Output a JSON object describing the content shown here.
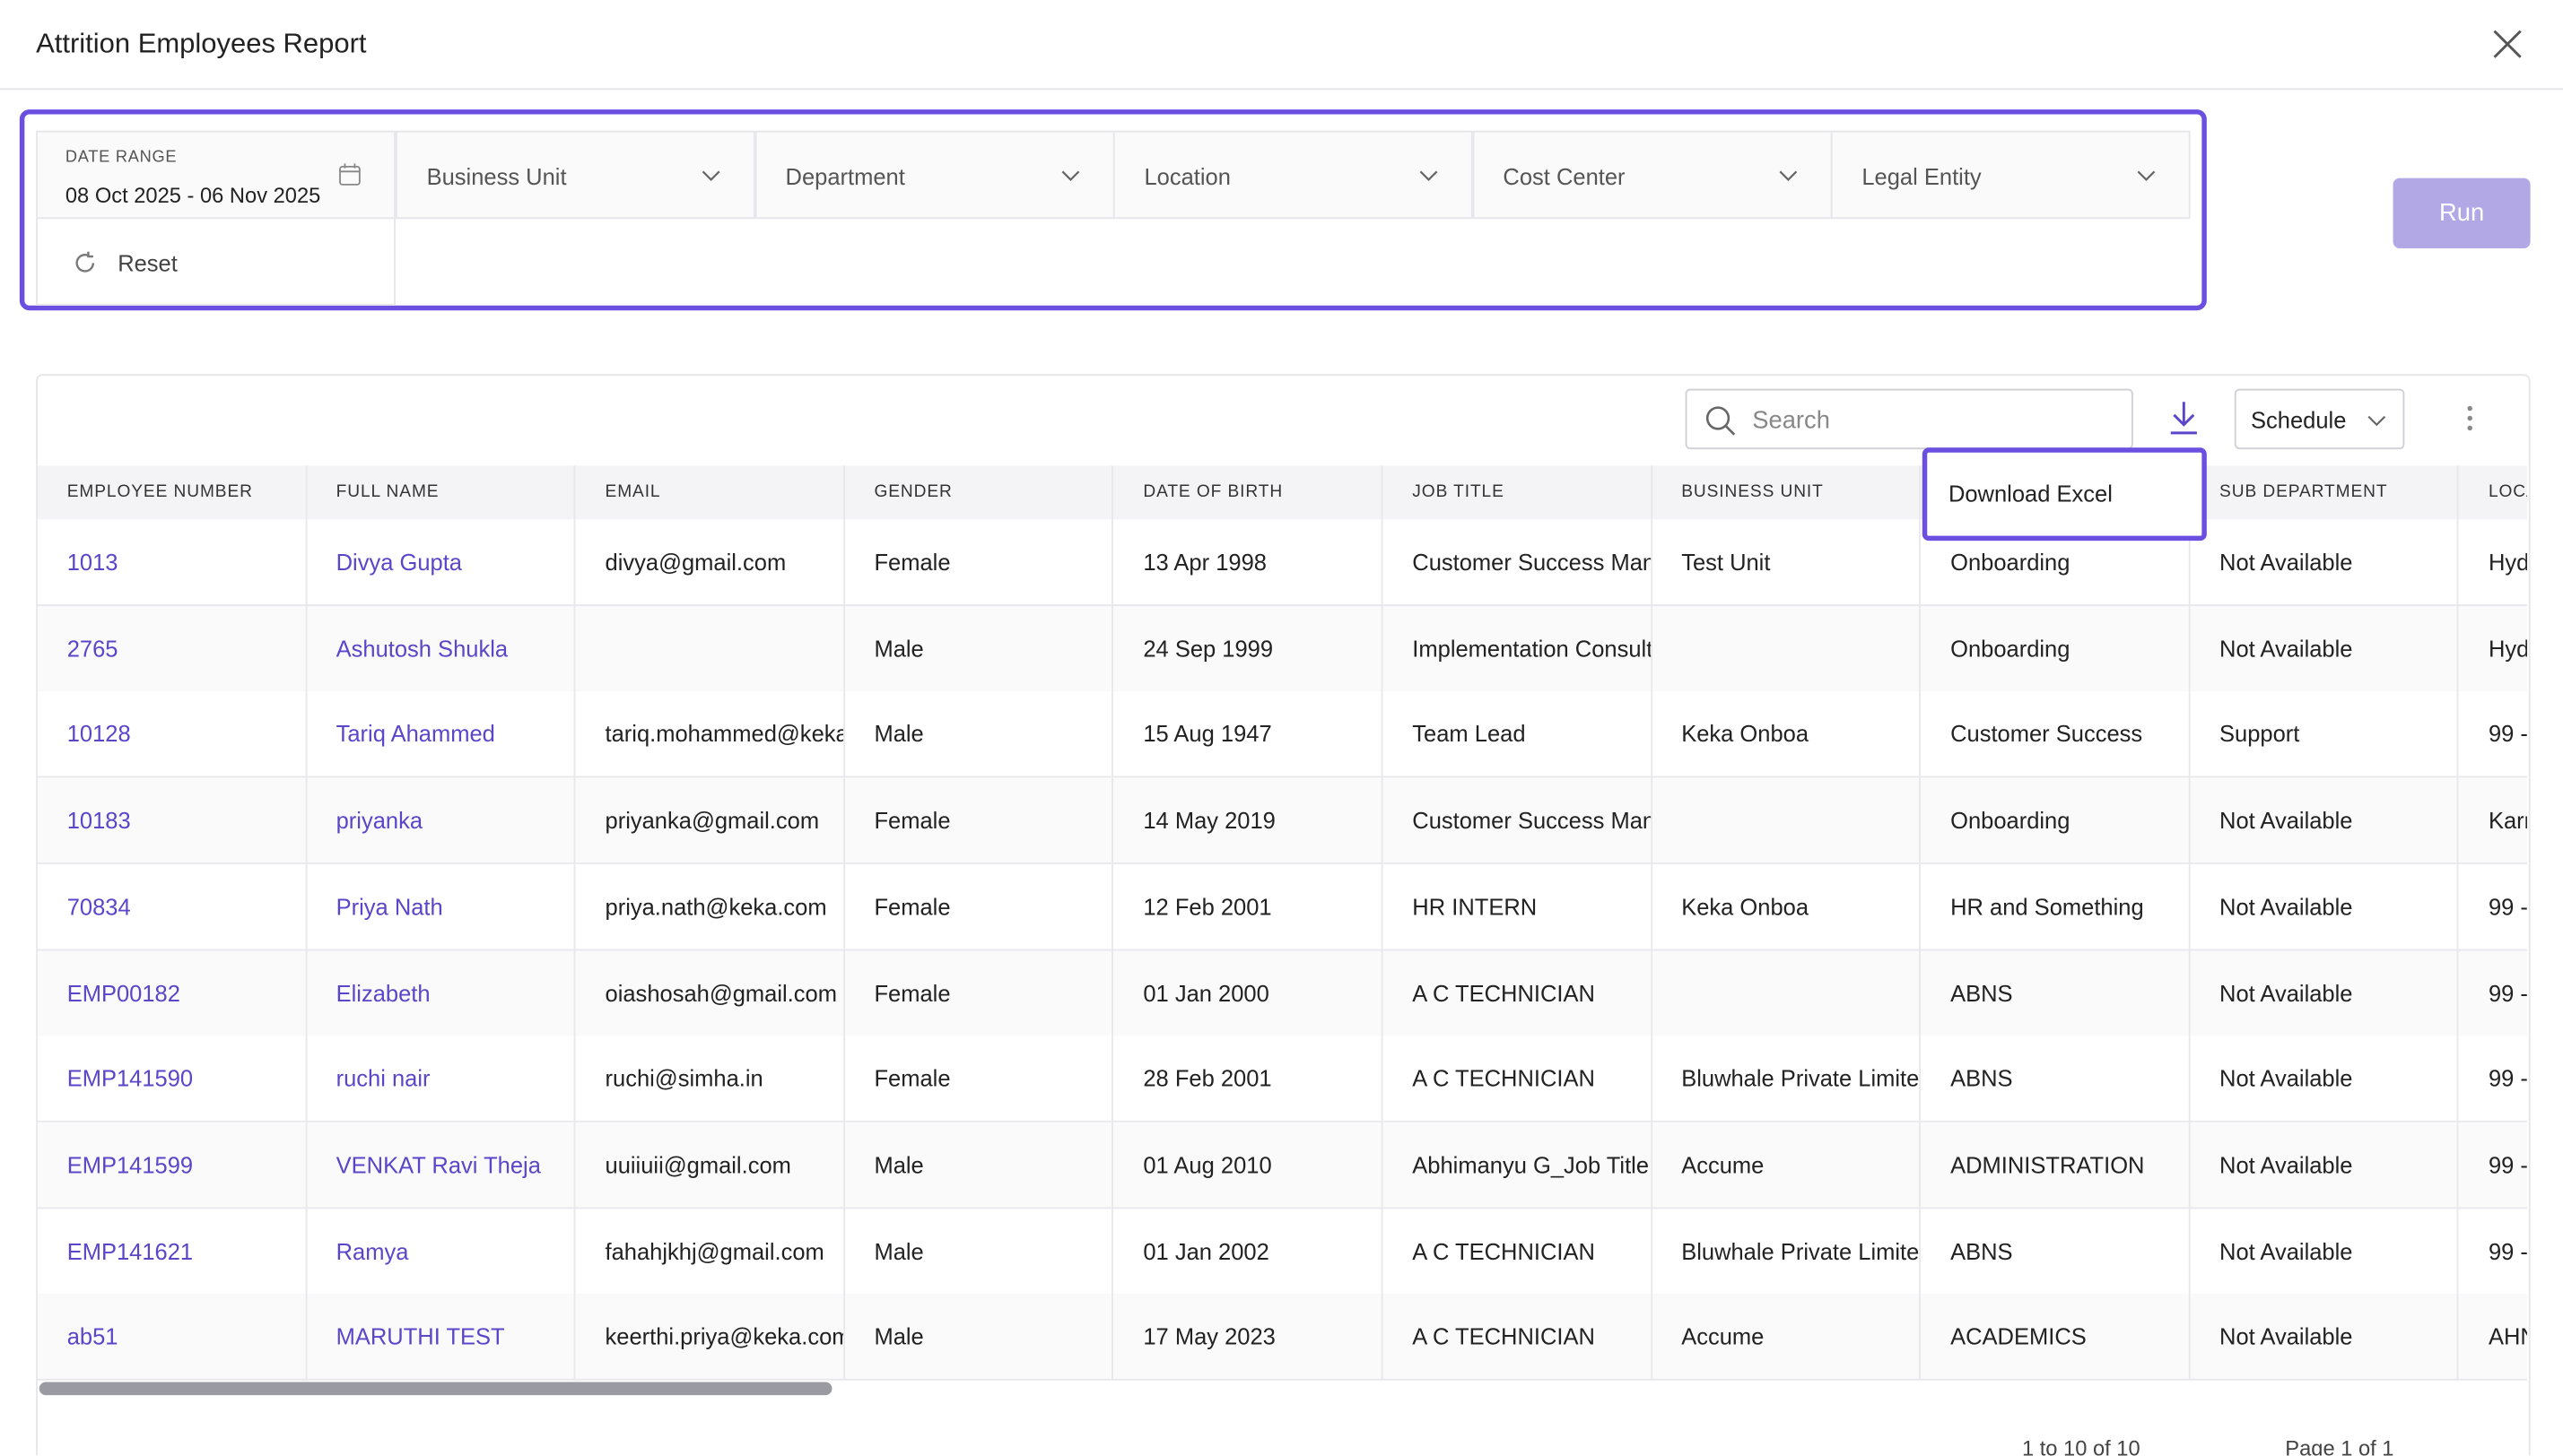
{
  "header": {
    "title": "Attrition Employees Report"
  },
  "filters": {
    "date_range_label": "DATE RANGE",
    "date_range_value": "08 Oct 2025 - 06 Nov 2025",
    "dropdowns": [
      "Business Unit",
      "Department",
      "Location",
      "Cost Center",
      "Legal Entity"
    ],
    "reset": "Reset",
    "run": "Run"
  },
  "toolbar": {
    "search_placeholder": "Search",
    "schedule": "Schedule",
    "download_menu": "Download Excel"
  },
  "table": {
    "headers": [
      "EMPLOYEE NUMBER",
      "FULL NAME",
      "EMAIL",
      "GENDER",
      "DATE OF BIRTH",
      "JOB TITLE",
      "BUSINESS UNIT",
      null,
      "SUB DEPARTMENT",
      "LOCA"
    ],
    "rows": [
      [
        "1013",
        "Divya Gupta",
        "divya@gmail.com",
        "Female",
        "13 Apr 1998",
        "Customer Success Man",
        "Test Unit",
        "Onboarding",
        "Not Available",
        "Hyd"
      ],
      [
        "2765",
        "Ashutosh Shukla",
        null,
        "Male",
        "24 Sep 1999",
        "Implementation Consult",
        null,
        "Onboarding",
        "Not Available",
        "Hyd"
      ],
      [
        "10128",
        "Tariq Ahammed",
        "tariq.mohammed@keka",
        "Male",
        "15 Aug 1947",
        "Team Lead",
        "Keka Onboa",
        "Customer Success",
        "Support",
        "99 -"
      ],
      [
        "10183",
        "priyanka",
        "priyanka@gmail.com",
        "Female",
        "14 May 2019",
        "Customer Success Man",
        null,
        "Onboarding",
        "Not Available",
        "Karr"
      ],
      [
        "70834",
        "Priya Nath",
        "priya.nath@keka.com",
        "Female",
        "12 Feb 2001",
        "HR INTERN",
        "Keka Onboa",
        "HR and Something",
        "Not Available",
        "99 -"
      ],
      [
        "EMP00182",
        "Elizabeth",
        "oiashosah@gmail.com",
        "Female",
        "01 Jan 2000",
        "A C TECHNICIAN",
        null,
        "ABNS",
        "Not Available",
        "99 -"
      ],
      [
        "EMP141590",
        "ruchi nair",
        "ruchi@simha.in",
        "Female",
        "28 Feb 2001",
        "A C TECHNICIAN",
        "Bluwhale Private Limite",
        "ABNS",
        "Not Available",
        "99 -"
      ],
      [
        "EMP141599",
        "VENKAT Ravi Theja",
        "uuiiuii@gmail.com",
        "Male",
        "01 Aug 2010",
        "Abhimanyu G_Job Title",
        "Accume",
        "ADMINISTRATION",
        "Not Available",
        "99 -"
      ],
      [
        "EMP141621",
        "Ramya",
        "fahahjkhj@gmail.com",
        "Male",
        "01 Jan 2002",
        "A C TECHNICIAN",
        "Bluwhale Private Limite",
        "ABNS",
        "Not Available",
        "99 -"
      ],
      [
        "ab51",
        "MARUTHI TEST",
        "keerthi.priya@keka.com",
        "Male",
        "17 May 2023",
        "A C TECHNICIAN",
        "Accume",
        "ACADEMICS",
        "Not Available",
        "AHN"
      ]
    ]
  },
  "pagination": {
    "range": "1 to 10 of 10",
    "page": "Page 1 of 1"
  }
}
